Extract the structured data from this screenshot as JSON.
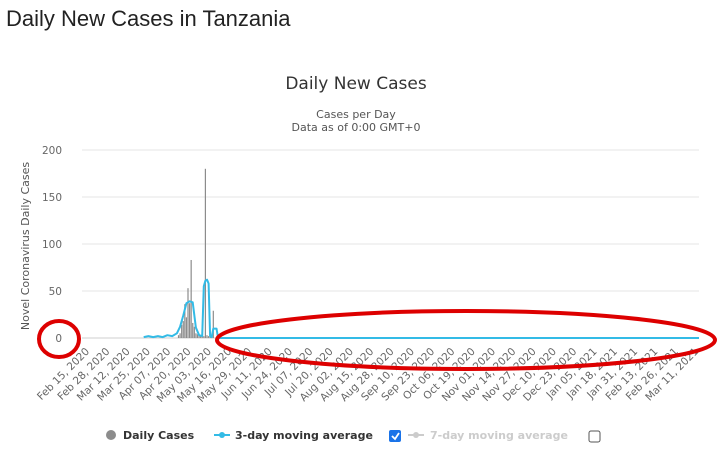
{
  "page": {
    "heading": "Daily New Cases in Tanzania"
  },
  "chart_data": {
    "type": "bar",
    "title": "Daily New Cases",
    "subtitle_line1": "Cases per Day",
    "subtitle_line2": "Data as of 0:00 GMT+0",
    "ylabel": "Novel Coronavirus Daily Cases",
    "xlabel": "",
    "ylim": [
      0,
      200
    ],
    "yticks": [
      "0",
      "50",
      "100",
      "150",
      "200"
    ],
    "grid": true,
    "x_tick_labels": [
      "Feb 15, 2020",
      "Feb 28, 2020",
      "Mar 12, 2020",
      "Mar 25, 2020",
      "Apr 07, 2020",
      "Apr 20, 2020",
      "May 03, 2020",
      "May 16, 2020",
      "May 29, 2020",
      "Jun 11, 2020",
      "Jun 24, 2020",
      "Jul 07, 2020",
      "Jul 20, 2020",
      "Aug 02, 2020",
      "Aug 15, 2020",
      "Aug 28, 2020",
      "Sep 10, 2020",
      "Sep 23, 2020",
      "Oct 06, 2020",
      "Oct 19, 2020",
      "Nov 01, 2020",
      "Nov 14, 2020",
      "Nov 27, 2020",
      "Dec 10, 2020",
      "Dec 23, 2020",
      "Jan 05, 2021",
      "Jan 18, 2021",
      "Jan 31, 2021",
      "Feb 13, 2021",
      "Feb 26, 2021",
      "Mar 11, 2021"
    ],
    "x_start": "Feb 15, 2020",
    "x_end": "Mar 11, 2021",
    "series": [
      {
        "name": "Daily Cases",
        "type": "bar",
        "color": "#8c8c8c",
        "visible": true,
        "points": [
          {
            "date": "Apr 16, 2020",
            "value": 3
          },
          {
            "date": "Apr 17, 2020",
            "value": 5
          },
          {
            "date": "Apr 18, 2020",
            "value": 14
          },
          {
            "date": "Apr 19, 2020",
            "value": 18
          },
          {
            "date": "Apr 20, 2020",
            "value": 36
          },
          {
            "date": "Apr 21, 2020",
            "value": 22
          },
          {
            "date": "Apr 22, 2020",
            "value": 53
          },
          {
            "date": "Apr 23, 2020",
            "value": 37
          },
          {
            "date": "Apr 24, 2020",
            "value": 83
          },
          {
            "date": "Apr 25, 2020",
            "value": 16
          },
          {
            "date": "Apr 26, 2020",
            "value": 12
          },
          {
            "date": "Apr 27, 2020",
            "value": 5
          },
          {
            "date": "Apr 28, 2020",
            "value": 4
          },
          {
            "date": "Apr 29, 2020",
            "value": 3
          },
          {
            "date": "Apr 30, 2020",
            "value": 2
          },
          {
            "date": "May 01, 2020",
            "value": 4
          },
          {
            "date": "May 02, 2020",
            "value": 2
          },
          {
            "date": "May 03, 2020",
            "value": 180
          },
          {
            "date": "May 04, 2020",
            "value": 3
          },
          {
            "date": "May 05, 2020",
            "value": 2
          },
          {
            "date": "May 06, 2020",
            "value": 1
          },
          {
            "date": "May 07, 2020",
            "value": 1
          },
          {
            "date": "May 08, 2020",
            "value": 29
          }
        ]
      },
      {
        "name": "3-day moving average",
        "type": "line",
        "color": "#33bbe6",
        "visible": true,
        "points": [
          {
            "date": "Mar 25, 2020",
            "value": 1
          },
          {
            "date": "Mar 28, 2020",
            "value": 2
          },
          {
            "date": "Mar 31, 2020",
            "value": 1
          },
          {
            "date": "Apr 03, 2020",
            "value": 2
          },
          {
            "date": "Apr 06, 2020",
            "value": 1
          },
          {
            "date": "Apr 09, 2020",
            "value": 3
          },
          {
            "date": "Apr 12, 2020",
            "value": 2
          },
          {
            "date": "Apr 15, 2020",
            "value": 5
          },
          {
            "date": "Apr 17, 2020",
            "value": 12
          },
          {
            "date": "Apr 19, 2020",
            "value": 24
          },
          {
            "date": "Apr 21, 2020",
            "value": 37
          },
          {
            "date": "Apr 23, 2020",
            "value": 39
          },
          {
            "date": "Apr 25, 2020",
            "value": 38
          },
          {
            "date": "Apr 27, 2020",
            "value": 11
          },
          {
            "date": "Apr 29, 2020",
            "value": 3
          },
          {
            "date": "May 01, 2020",
            "value": 2
          },
          {
            "date": "May 02, 2020",
            "value": 55
          },
          {
            "date": "May 03, 2020",
            "value": 61
          },
          {
            "date": "May 04, 2020",
            "value": 62
          },
          {
            "date": "May 05, 2020",
            "value": 58
          },
          {
            "date": "May 06, 2020",
            "value": 2
          },
          {
            "date": "May 07, 2020",
            "value": 1
          },
          {
            "date": "May 08, 2020",
            "value": 10
          },
          {
            "date": "May 09, 2020",
            "value": 10
          },
          {
            "date": "May 10, 2020",
            "value": 10
          },
          {
            "date": "May 11, 2020",
            "value": 0
          },
          {
            "date": "Mar 11, 2021",
            "value": 0
          }
        ]
      },
      {
        "name": "7-day moving average",
        "type": "line",
        "color": "#cccccc",
        "visible": false,
        "points": []
      }
    ],
    "legend": {
      "placement": "bottom-center",
      "items": [
        {
          "label": "Daily Cases",
          "color": "#8c8c8c",
          "icon": "circle-icon",
          "enabled": true
        },
        {
          "label": "3-day moving average",
          "color": "#33bbe6",
          "icon": "line-marker-icon",
          "enabled": true,
          "checkbox_checked": true
        },
        {
          "label": "7-day moving average",
          "color": "#cccccc",
          "icon": "line-marker-icon",
          "enabled": false,
          "checkbox_checked": false
        }
      ]
    },
    "annotations": [
      {
        "kind": "red-ellipse",
        "target": "y-axis zero label"
      },
      {
        "kind": "red-ellipse",
        "target": "flat zero line May 2020 - Mar 2021"
      }
    ],
    "annotation_color": "#dd0000"
  }
}
